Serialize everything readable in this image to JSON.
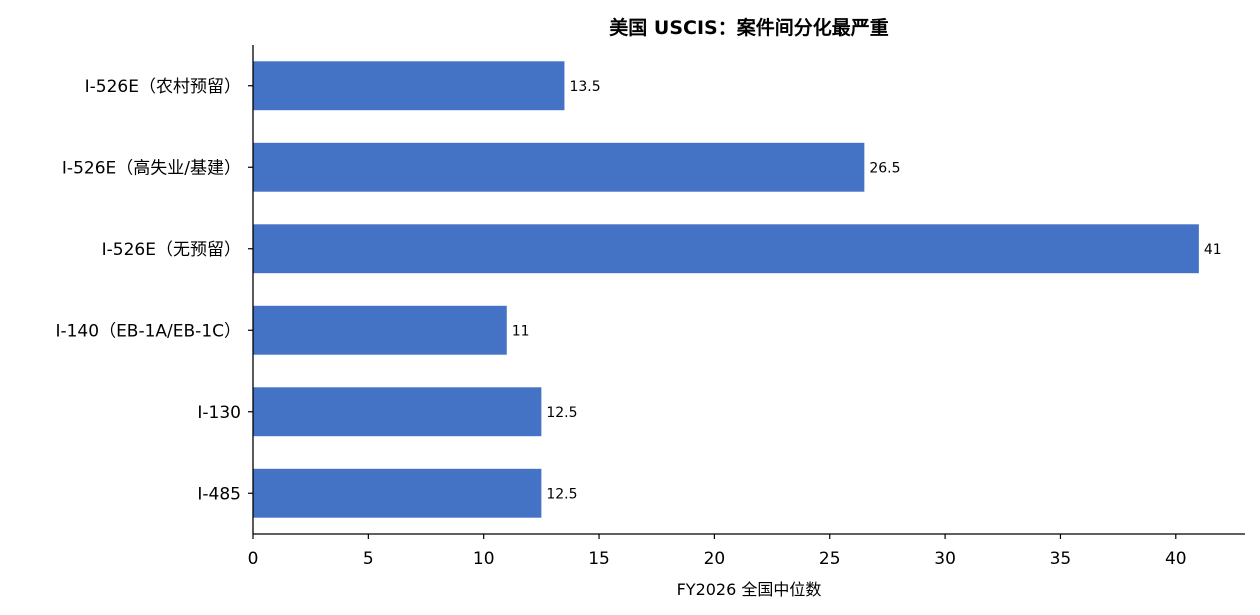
{
  "chart_data": {
    "type": "bar",
    "orientation": "horizontal",
    "title": "美国 USCIS：案件间分化最严重",
    "xlabel": "FY2026 全国中位数",
    "ylabel": "",
    "categories": [
      "I-526E（农村预留）",
      "I-526E（高失业/基建）",
      "I-526E（无预留）",
      "I-140（EB-1A/EB-1C）",
      "I-130",
      "I-485"
    ],
    "values": [
      13.5,
      26.5,
      41,
      11,
      12.5,
      12.5
    ],
    "data_labels": [
      "13.5",
      "26.5",
      "41",
      "11",
      "12.5",
      "12.5"
    ],
    "xlim": [
      0,
      43
    ],
    "x_ticks": [
      0,
      5,
      10,
      15,
      20,
      25,
      30,
      35,
      40
    ],
    "grid": false,
    "legend": "none",
    "bar_color": "#4472C4"
  }
}
